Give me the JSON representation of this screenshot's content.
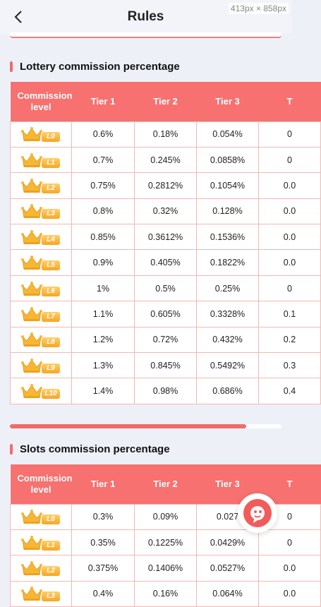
{
  "header": {
    "title": "Rules"
  },
  "overlay": {
    "size_label": "413px × 858px"
  },
  "tables": [
    {
      "title": "Lottery commission percentage",
      "columns": [
        "Commission level",
        "Tier 1",
        "Tier 2",
        "Tier 3",
        "T"
      ],
      "rows": [
        {
          "level": "L0",
          "values": [
            "0.6%",
            "0.18%",
            "0.054%",
            "0"
          ]
        },
        {
          "level": "L1",
          "values": [
            "0.7%",
            "0.245%",
            "0.0858%",
            "0"
          ]
        },
        {
          "level": "L2",
          "values": [
            "0.75%",
            "0.2812%",
            "0.1054%",
            "0.0"
          ]
        },
        {
          "level": "L3",
          "values": [
            "0.8%",
            "0.32%",
            "0.128%",
            "0.0"
          ]
        },
        {
          "level": "L4",
          "values": [
            "0.85%",
            "0.3612%",
            "0.1536%",
            "0.0"
          ]
        },
        {
          "level": "L5",
          "values": [
            "0.9%",
            "0.405%",
            "0.1822%",
            "0.0"
          ]
        },
        {
          "level": "L6",
          "values": [
            "1%",
            "0.5%",
            "0.25%",
            "0"
          ]
        },
        {
          "level": "L7",
          "values": [
            "1.1%",
            "0.605%",
            "0.3328%",
            "0.1"
          ]
        },
        {
          "level": "L8",
          "values": [
            "1.2%",
            "0.72%",
            "0.432%",
            "0.2"
          ]
        },
        {
          "level": "L9",
          "values": [
            "1.3%",
            "0.845%",
            "0.5492%",
            "0.3"
          ]
        },
        {
          "level": "L10",
          "values": [
            "1.4%",
            "0.98%",
            "0.686%",
            "0.4"
          ]
        }
      ]
    },
    {
      "title": "Slots commission percentage",
      "columns": [
        "Commission level",
        "Tier 1",
        "Tier 2",
        "Tier 3",
        "T"
      ],
      "rows": [
        {
          "level": "L0",
          "values": [
            "0.3%",
            "0.09%",
            "0.027",
            "0"
          ]
        },
        {
          "level": "L1",
          "values": [
            "0.35%",
            "0.1225%",
            "0.0429%",
            "0"
          ]
        },
        {
          "level": "L2",
          "values": [
            "0.375%",
            "0.1406%",
            "0.0527%",
            "0.0"
          ]
        },
        {
          "level": "L3",
          "values": [
            "0.4%",
            "0.16%",
            "0.064%",
            "0.0"
          ]
        }
      ]
    }
  ],
  "scroll_progress": 0.87,
  "colors": {
    "accent": "#f6716f",
    "crown": "#f6a623"
  }
}
